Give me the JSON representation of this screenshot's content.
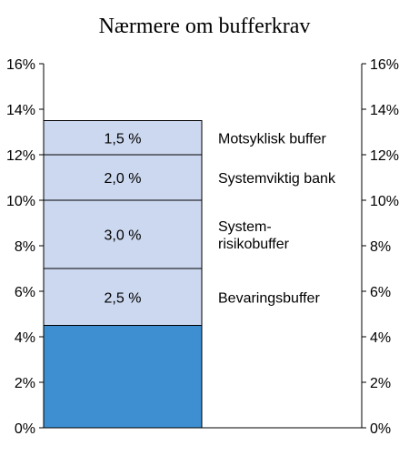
{
  "chart_data": {
    "type": "bar",
    "stacked": true,
    "title": "Nærmere om bufferkrav",
    "ylim": [
      0,
      16
    ],
    "y_ticks": [
      "0%",
      "2%",
      "4%",
      "6%",
      "8%",
      "10%",
      "12%",
      "14%",
      "16%"
    ],
    "y_tick_values": [
      0,
      2,
      4,
      6,
      8,
      10,
      12,
      14,
      16
    ],
    "grid": false,
    "segments": [
      {
        "value": 4.5,
        "label": "",
        "annotation": [],
        "color": "#3d8fd1"
      },
      {
        "value": 2.5,
        "label": "2,5 %",
        "annotation": [
          "Bevaringsbuffer"
        ],
        "color": "#ccd8ef"
      },
      {
        "value": 3.0,
        "label": "3,0 %",
        "annotation": [
          "System-",
          "risikobuffer"
        ],
        "color": "#ccd8ef"
      },
      {
        "value": 2.0,
        "label": "2,0 %",
        "annotation": [
          "Systemviktig bank"
        ],
        "color": "#ccd8ef"
      },
      {
        "value": 1.5,
        "label": "1,5 %",
        "annotation": [
          "Motsyklisk buffer"
        ],
        "color": "#ccd8ef"
      }
    ],
    "colors": {
      "axis": "#000000",
      "segment_edge": "#000000"
    }
  }
}
